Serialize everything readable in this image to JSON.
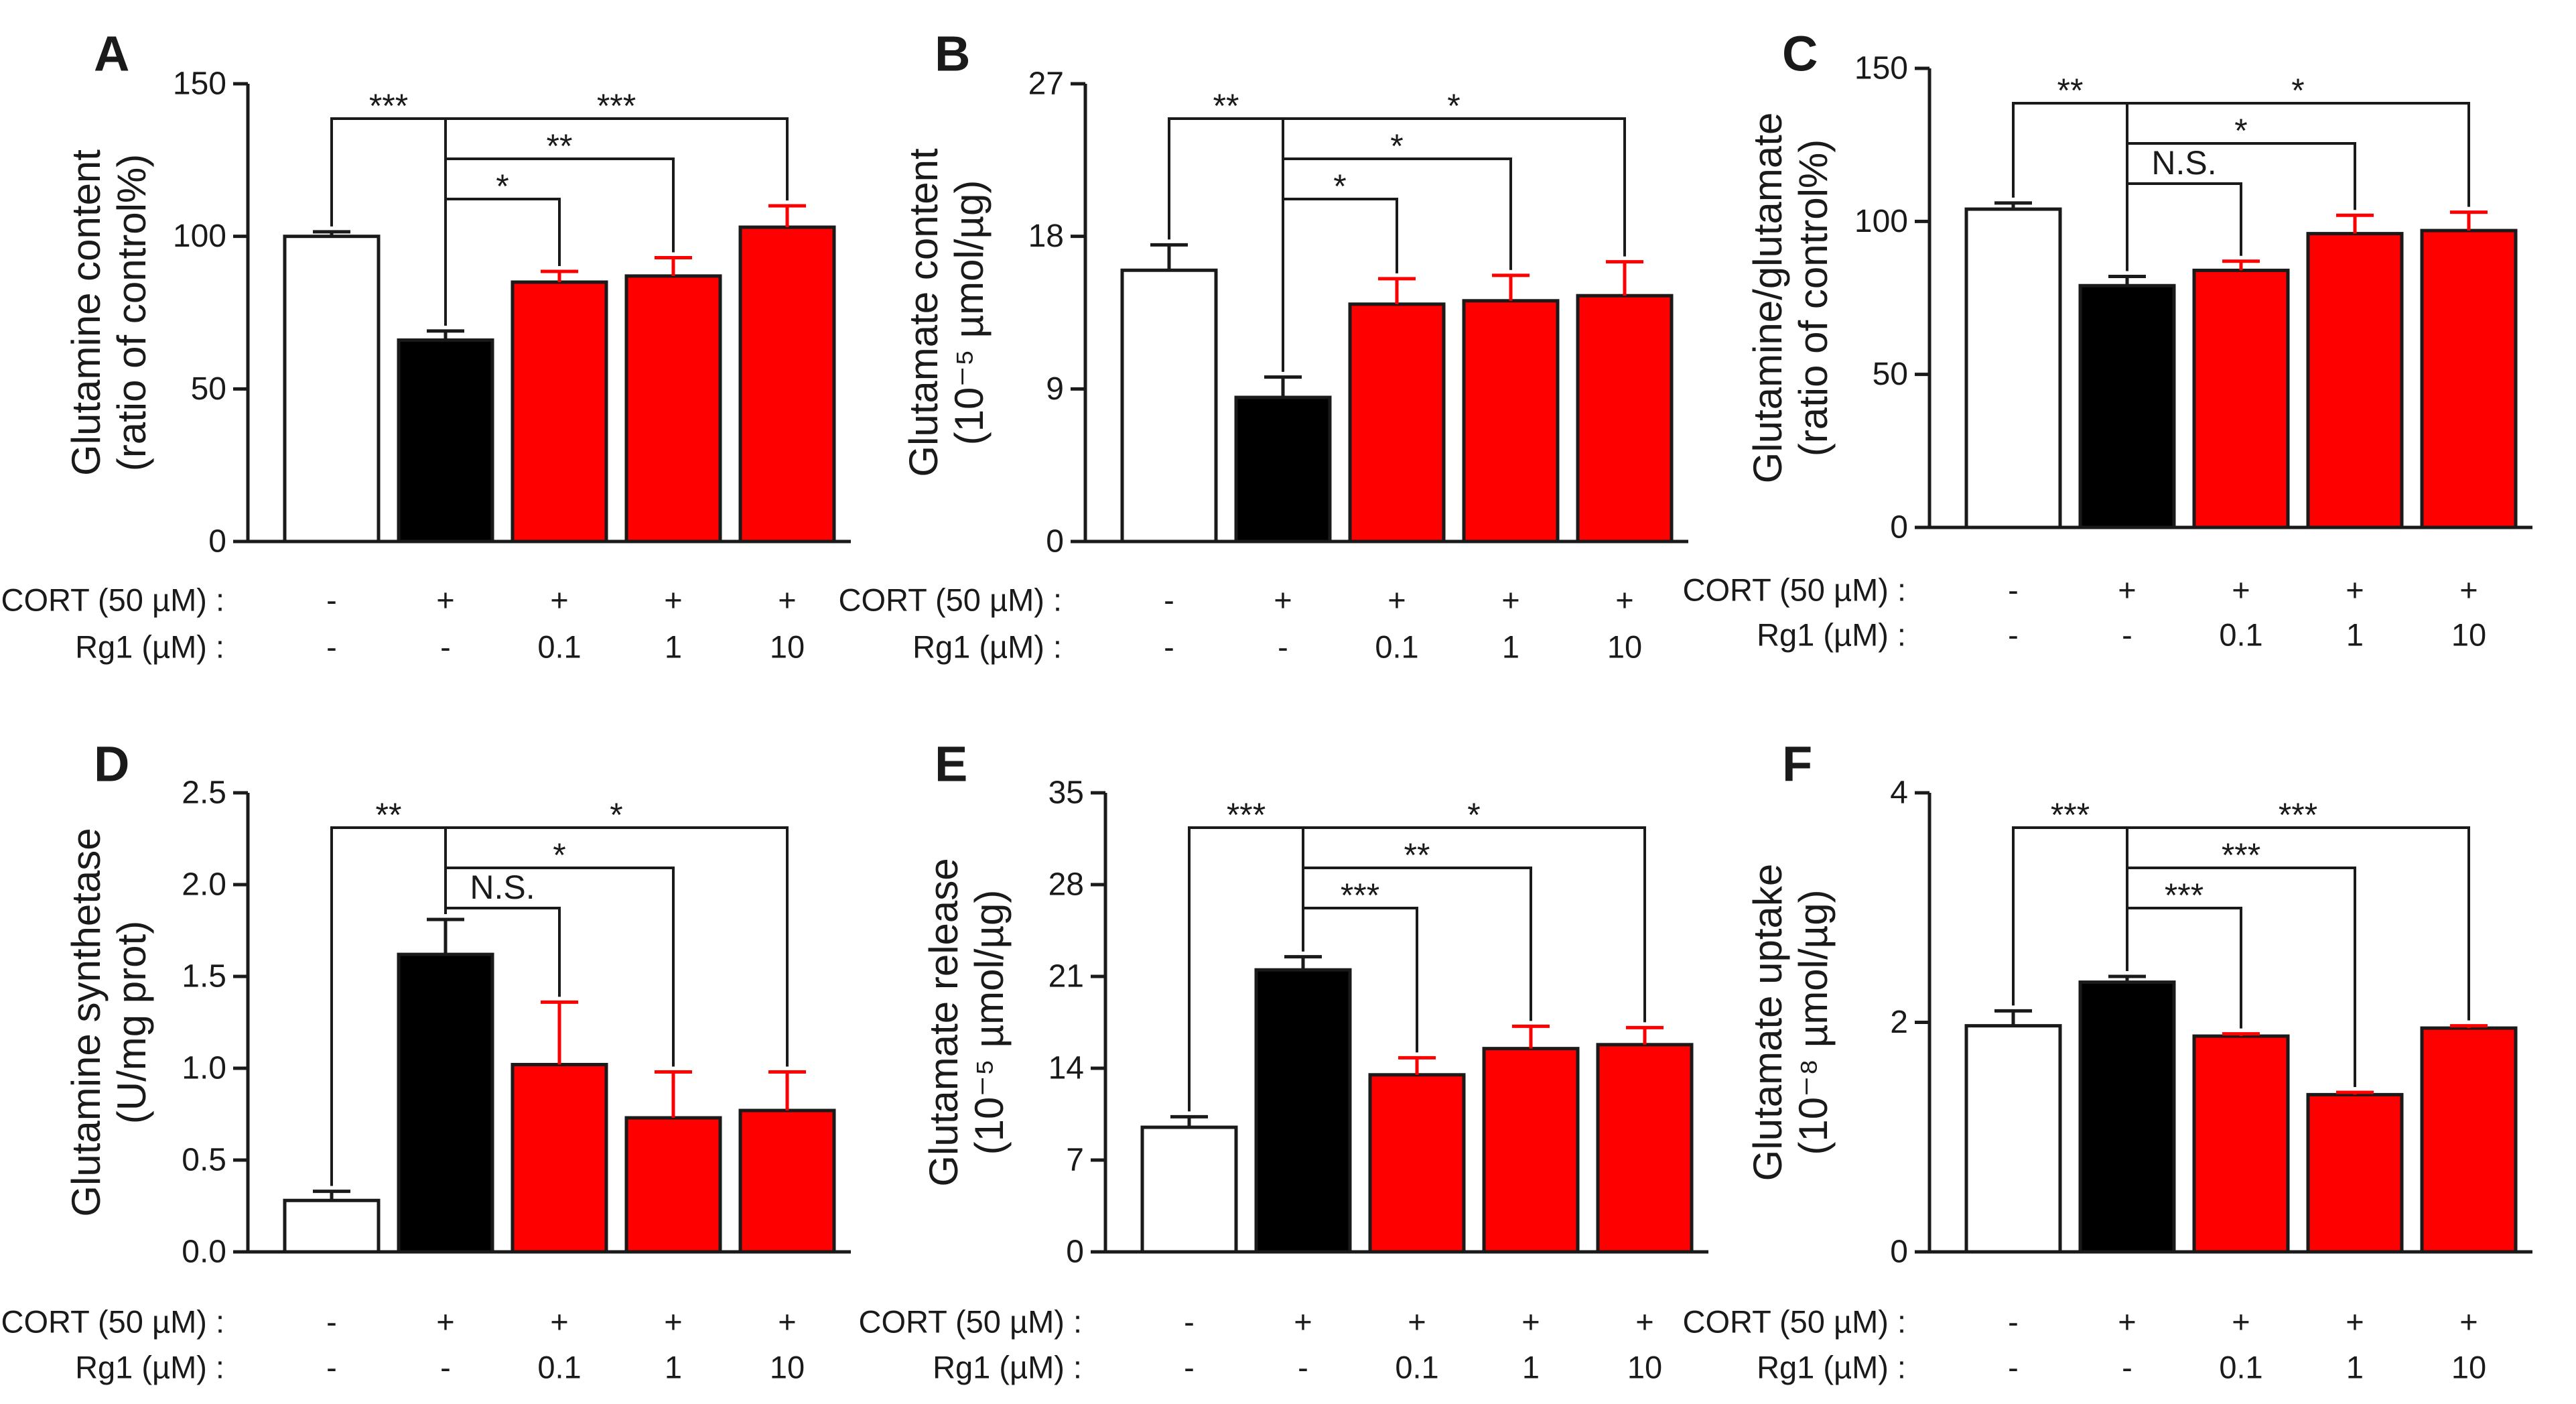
{
  "colors": {
    "control": "#ffffff",
    "cort": "#000000",
    "rg1": "#ff0000",
    "axis": "#1a1a1a"
  },
  "chart_data": [
    {
      "type": "bar",
      "panel": "A",
      "ylabel": [
        "Glutamine content",
        "(ratio of control%)"
      ],
      "ylim": [
        0,
        150
      ],
      "yticks": [
        0,
        50,
        100,
        150
      ],
      "ytick_labels": [
        "0",
        "50",
        "100",
        "150"
      ],
      "values": [
        100,
        66,
        85,
        87,
        103
      ],
      "errors": [
        1.5,
        3,
        3.5,
        6,
        7
      ],
      "row_labels": [
        "CORT (50 µM) :",
        "Rg1 (µM) :"
      ],
      "cort": [
        "-",
        "+",
        "+",
        "+",
        "+"
      ],
      "rg1": [
        "-",
        "-",
        "0.1",
        "1",
        "10"
      ],
      "significance": [
        {
          "from": 0,
          "to": 1,
          "label": "***"
        },
        {
          "from": 1,
          "to": 4,
          "label": "***"
        },
        {
          "from": 1,
          "to": 3,
          "label": "**"
        },
        {
          "from": 1,
          "to": 2,
          "label": "*"
        }
      ]
    },
    {
      "type": "bar",
      "panel": "B",
      "ylabel": [
        "Glutamate content",
        "(10⁻⁵ µmol/µg)"
      ],
      "ylim": [
        0,
        27
      ],
      "yticks": [
        0,
        9,
        18,
        27
      ],
      "ytick_labels": [
        "0",
        "9",
        "18",
        "27"
      ],
      "values": [
        16,
        8.5,
        14,
        14.2,
        14.5
      ],
      "errors": [
        1.5,
        1.2,
        1.5,
        1.5,
        2
      ],
      "row_labels": [
        "CORT (50 µM) :",
        "Rg1 (µM) :"
      ],
      "cort": [
        "-",
        "+",
        "+",
        "+",
        "+"
      ],
      "rg1": [
        "-",
        "-",
        "0.1",
        "1",
        "10"
      ],
      "significance": [
        {
          "from": 0,
          "to": 1,
          "label": "**"
        },
        {
          "from": 1,
          "to": 4,
          "label": "*"
        },
        {
          "from": 1,
          "to": 3,
          "label": "*"
        },
        {
          "from": 1,
          "to": 2,
          "label": "*"
        }
      ]
    },
    {
      "type": "bar",
      "panel": "C",
      "ylabel": [
        "Glutamine/glutamate",
        "(ratio of control%)"
      ],
      "ylim": [
        0,
        150
      ],
      "yticks": [
        0,
        50,
        100,
        150
      ],
      "ytick_labels": [
        "0",
        "50",
        "100",
        "150"
      ],
      "values": [
        104,
        79,
        84,
        96,
        97
      ],
      "errors": [
        2,
        3,
        3,
        6,
        6
      ],
      "row_labels": [
        "CORT (50 µM) :",
        "Rg1 (µM) :"
      ],
      "cort": [
        "-",
        "+",
        "+",
        "+",
        "+"
      ],
      "rg1": [
        "-",
        "-",
        "0.1",
        "1",
        "10"
      ],
      "significance": [
        {
          "from": 0,
          "to": 1,
          "label": "**"
        },
        {
          "from": 1,
          "to": 4,
          "label": "*"
        },
        {
          "from": 1,
          "to": 3,
          "label": "*"
        },
        {
          "from": 1,
          "to": 2,
          "label": "N.S."
        }
      ]
    },
    {
      "type": "bar",
      "panel": "D",
      "ylabel": [
        "Glutamine synthetase",
        "(U/mg prot)"
      ],
      "ylim": [
        0,
        2.5
      ],
      "yticks": [
        0,
        0.5,
        1.0,
        1.5,
        2.0,
        2.5
      ],
      "ytick_labels": [
        "0.0",
        "0.5",
        "1.0",
        "1.5",
        "2.0",
        "2.5"
      ],
      "values": [
        0.28,
        1.62,
        1.02,
        0.73,
        0.77
      ],
      "errors": [
        0.05,
        0.19,
        0.34,
        0.25,
        0.21
      ],
      "row_labels": [
        "CORT (50 µM) :",
        "Rg1 (µM) :"
      ],
      "cort": [
        "-",
        "+",
        "+",
        "+",
        "+"
      ],
      "rg1": [
        "-",
        "-",
        "0.1",
        "1",
        "10"
      ],
      "significance": [
        {
          "from": 0,
          "to": 1,
          "label": "**"
        },
        {
          "from": 1,
          "to": 4,
          "label": "*"
        },
        {
          "from": 1,
          "to": 3,
          "label": "*"
        },
        {
          "from": 1,
          "to": 2,
          "label": "N.S."
        }
      ]
    },
    {
      "type": "bar",
      "panel": "E",
      "ylabel": [
        "Glutamate release",
        "(10⁻⁵ µmol/µg)"
      ],
      "ylim": [
        0,
        35
      ],
      "yticks": [
        0,
        7,
        14,
        21,
        28,
        35
      ],
      "ytick_labels": [
        "0",
        "7",
        "14",
        "21",
        "28",
        "35"
      ],
      "values": [
        9.5,
        21.5,
        13.5,
        15.5,
        15.8
      ],
      "errors": [
        0.8,
        1,
        1.3,
        1.7,
        1.3
      ],
      "row_labels": [
        "CORT (50 µM) :",
        "Rg1 (µM) :"
      ],
      "cort": [
        "-",
        "+",
        "+",
        "+",
        "+"
      ],
      "rg1": [
        "-",
        "-",
        "0.1",
        "1",
        "10"
      ],
      "significance": [
        {
          "from": 0,
          "to": 1,
          "label": "***"
        },
        {
          "from": 1,
          "to": 4,
          "label": "*"
        },
        {
          "from": 1,
          "to": 3,
          "label": "**"
        },
        {
          "from": 1,
          "to": 2,
          "label": "***"
        }
      ]
    },
    {
      "type": "bar",
      "panel": "F",
      "ylabel": [
        "Glutamate uptake",
        "(10⁻⁸ µmol/µg)"
      ],
      "ylim": [
        0,
        4
      ],
      "yticks": [
        0,
        2,
        4
      ],
      "ytick_labels": [
        "0",
        "2",
        "4"
      ],
      "values": [
        1.97,
        2.35,
        1.88,
        1.37,
        1.95
      ],
      "errors": [
        0.13,
        0.05,
        0.02,
        0.02,
        0.02
      ],
      "row_labels": [
        "CORT (50 µM) :",
        "Rg1 (µM) :"
      ],
      "cort": [
        "-",
        "+",
        "+",
        "+",
        "+"
      ],
      "rg1": [
        "-",
        "-",
        "0.1",
        "1",
        "10"
      ],
      "significance": [
        {
          "from": 0,
          "to": 1,
          "label": "***"
        },
        {
          "from": 1,
          "to": 4,
          "label": "***"
        },
        {
          "from": 1,
          "to": 3,
          "label": "***"
        },
        {
          "from": 1,
          "to": 2,
          "label": "***"
        }
      ]
    }
  ]
}
